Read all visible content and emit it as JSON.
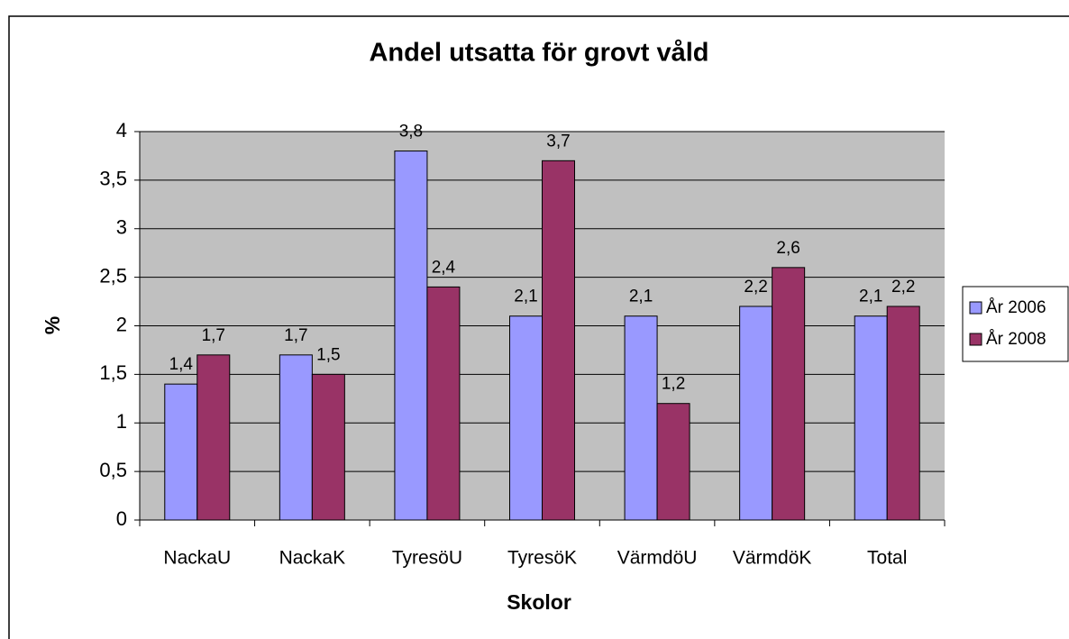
{
  "chart_data": {
    "type": "bar",
    "title": "Andel utsatta för grovt våld",
    "x_label": "Skolor",
    "y_label": "%",
    "categories": [
      "NackaU",
      "NackaK",
      "TyresöU",
      "TyresöK",
      "VärmdöU",
      "VärmdöK",
      "Total"
    ],
    "series": [
      {
        "name": "År 2006",
        "color": "#9999ff",
        "values": [
          1.4,
          1.7,
          3.8,
          2.1,
          2.1,
          2.2,
          2.1
        ],
        "value_labels": [
          "1,4",
          "1,7",
          "3,8",
          "2,1",
          "2,1",
          "2,2",
          "2,1"
        ]
      },
      {
        "name": "År 2008",
        "color": "#993366",
        "values": [
          1.7,
          1.5,
          2.4,
          3.7,
          1.2,
          2.6,
          2.2
        ],
        "value_labels": [
          "1,7",
          "1,5",
          "2,4",
          "3,7",
          "1,2",
          "2,6",
          "2,2"
        ]
      }
    ],
    "ylim": [
      0,
      4
    ],
    "yticks": [
      0,
      {
        "value": 0.5,
        "label": "0,5"
      },
      1,
      {
        "value": 1.5,
        "label": "1,5"
      },
      2,
      {
        "value": 2.5,
        "label": "2,5"
      },
      3,
      {
        "value": 3.5,
        "label": "3,5"
      },
      4
    ],
    "grid": true,
    "legend": "right",
    "plot_background": "#c0c0c0"
  }
}
